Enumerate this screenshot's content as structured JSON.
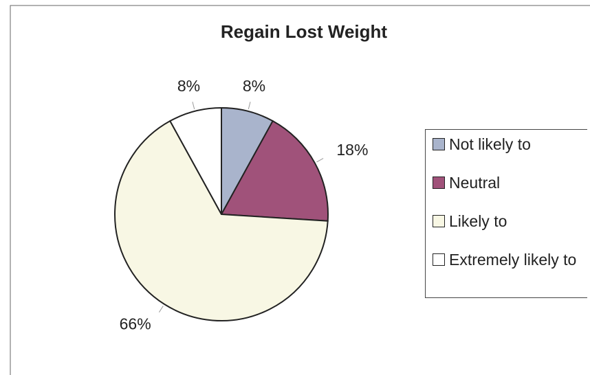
{
  "chart_data": {
    "type": "pie",
    "title": "Regain Lost Weight",
    "categories": [
      "Not likely to",
      "Neutral",
      "Likely to",
      "Extremely likely to"
    ],
    "values": [
      8,
      18,
      66,
      8
    ],
    "value_labels": [
      "8%",
      "18%",
      "66%",
      "8%"
    ],
    "colors": [
      "#a9b4cc",
      "#a0527a",
      "#f8f7e4",
      "#ffffff"
    ],
    "legend": "right"
  }
}
